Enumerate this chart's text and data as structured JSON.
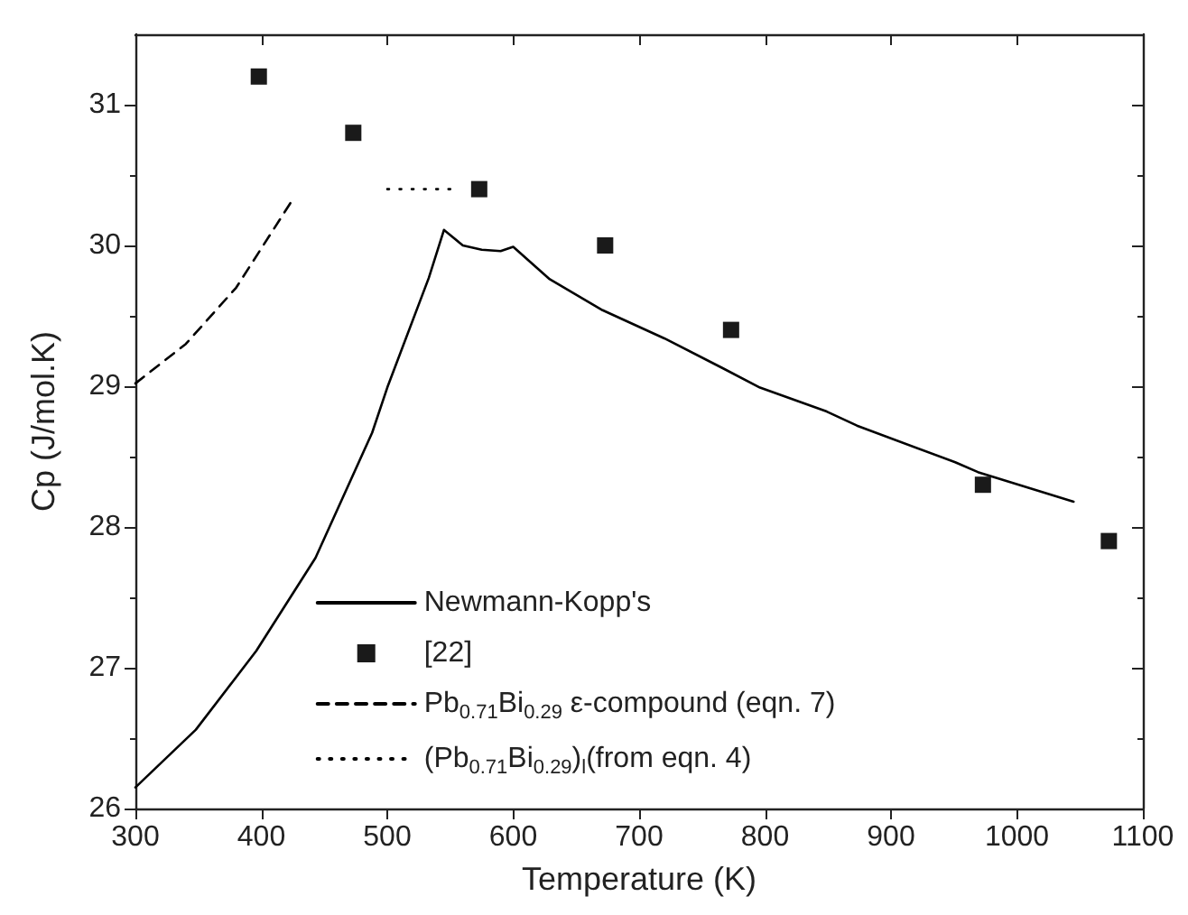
{
  "chart_data": {
    "type": "line",
    "xlabel": "Temperature (K)",
    "ylabel": "Cp (J/mol.K)",
    "xlim": [
      300,
      1100
    ],
    "xticks": [
      300,
      400,
      500,
      600,
      700,
      800,
      900,
      1000,
      1100
    ],
    "ylim": [
      26,
      31.5
    ],
    "yticks": [
      26,
      27,
      28,
      29,
      30,
      31
    ],
    "grid": false,
    "legend": "bottom",
    "series": [
      {
        "name": "Newmann-Kopp's",
        "color": "#000000",
        "line_style": "solid",
        "marker": "none",
        "x": [
          300,
          348,
          396,
          443,
          488,
          500,
          533,
          545,
          560,
          575,
          590,
          600,
          629,
          671,
          720,
          766,
          796,
          849,
          873,
          951,
          969,
          1045
        ],
        "values": [
          26.15,
          26.56,
          27.12,
          27.78,
          28.67,
          28.99,
          29.77,
          30.11,
          30.0,
          29.97,
          29.96,
          29.99,
          29.76,
          29.54,
          29.34,
          29.13,
          28.99,
          28.82,
          28.72,
          28.46,
          28.39,
          28.18
        ]
      },
      {
        "name": "[22]",
        "type": "scatter",
        "color": "#1a1a1a",
        "marker": "square",
        "x": [
          398,
          473,
          573,
          673,
          773,
          973,
          1073
        ],
        "values": [
          31.2,
          30.8,
          30.4,
          30.0,
          29.4,
          28.3,
          27.9
        ]
      },
      {
        "name": "Pb$_{0.71}$Bi$_{0.29}$ ε-compound (eqn. 7)",
        "color": "#000000",
        "line_style": "dashed",
        "marker": "none",
        "x": [
          300,
          340,
          380,
          423
        ],
        "values": [
          29.02,
          29.3,
          29.7,
          30.3
        ]
      },
      {
        "name": "(Pb$_{0.71}$Bi$_{0.29}$)$_{l}$(from eqn. 4)",
        "color": "#000000",
        "line_style": "dotted",
        "marker": "none",
        "x": [
          500,
          550
        ],
        "values": [
          30.4,
          30.4
        ]
      }
    ]
  }
}
